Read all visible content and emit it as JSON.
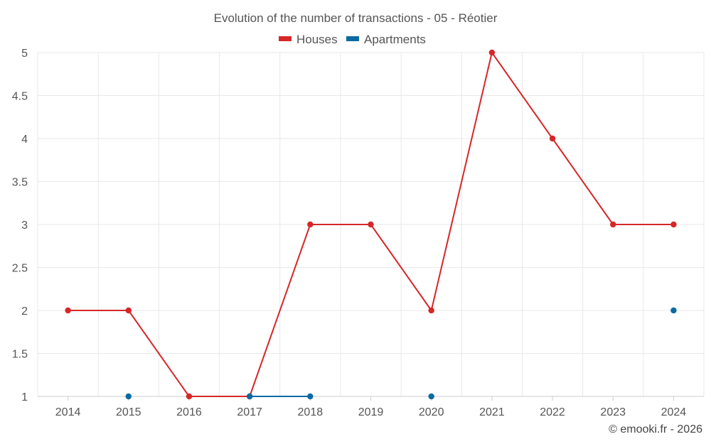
{
  "chart_data": {
    "type": "line",
    "title": "Evolution of the number of transactions - 05 - Réotier",
    "categories": [
      "2014",
      "2015",
      "2016",
      "2017",
      "2018",
      "2019",
      "2020",
      "2021",
      "2022",
      "2023",
      "2024"
    ],
    "series": [
      {
        "name": "Houses",
        "color": "#d62728",
        "values": [
          2,
          2,
          1,
          1,
          3,
          3,
          2,
          5,
          4,
          3,
          3
        ]
      },
      {
        "name": "Apartments",
        "color": "#0b6aa2",
        "values": [
          null,
          1,
          null,
          1,
          1,
          null,
          1,
          null,
          null,
          null,
          2
        ]
      }
    ],
    "ylim": [
      1,
      5
    ],
    "yticks": [
      "1",
      "1.5",
      "2",
      "2.5",
      "3",
      "3.5",
      "4",
      "4.5",
      "5"
    ],
    "xlabel": "",
    "ylabel": "",
    "grid": true,
    "legend_position": "top-center",
    "credit": "© emooki.fr - 2026"
  }
}
